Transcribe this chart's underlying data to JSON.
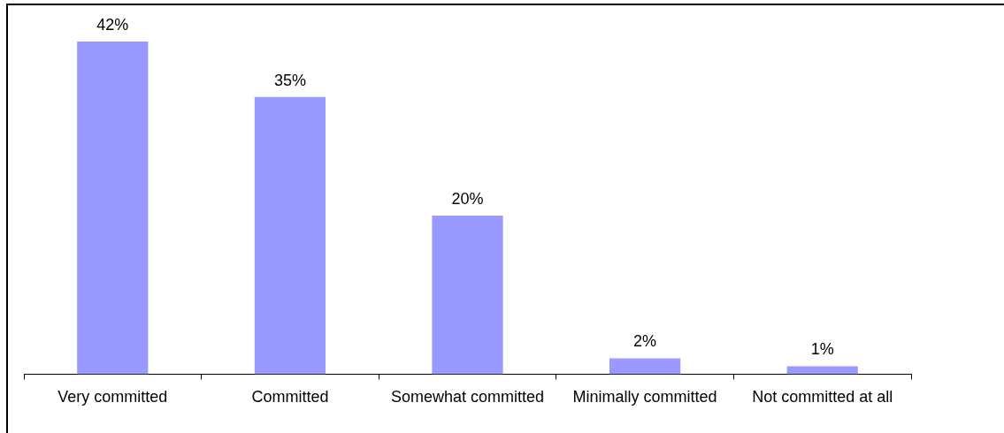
{
  "chart_data": {
    "type": "bar",
    "categories": [
      "Very committed",
      "Committed",
      "Somewhat committed",
      "Minimally committed",
      "Not committed at all"
    ],
    "values": [
      42,
      35,
      20,
      2,
      1
    ],
    "value_labels": [
      "42%",
      "35%",
      "20%",
      "2%",
      "1%"
    ],
    "color": "#9999ff",
    "tick_labels": "x"
  }
}
